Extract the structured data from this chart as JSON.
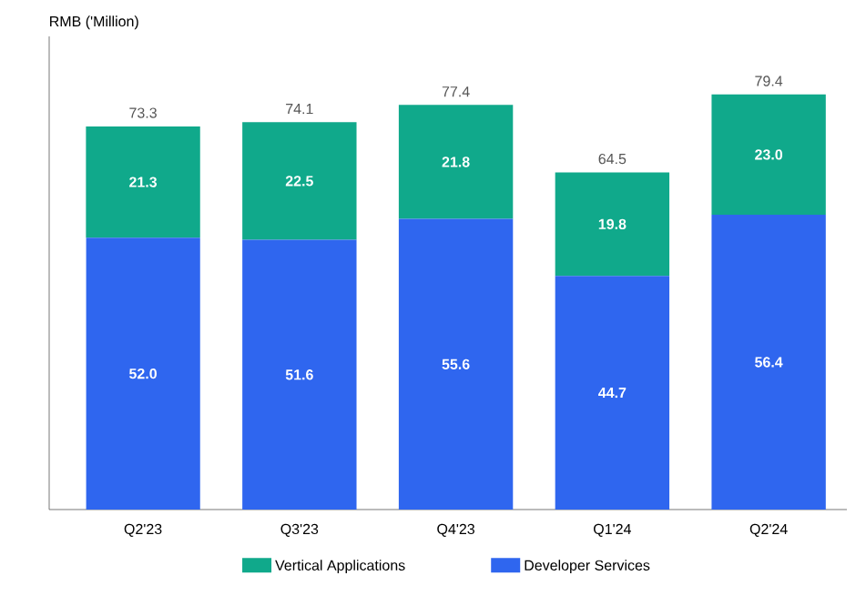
{
  "chart_data": {
    "type": "bar",
    "stacked": true,
    "ylabel": "RMB ('Million)",
    "categories": [
      "Q2'23",
      "Q3'23",
      "Q4'23",
      "Q1'24",
      "Q2'24"
    ],
    "series": [
      {
        "name": "Developer Services",
        "color": "#2f66ef",
        "values": [
          52.0,
          51.6,
          55.6,
          44.7,
          56.4
        ],
        "value_labels": [
          "52.0",
          "51.6",
          "55.6",
          "44.7",
          "56.4"
        ]
      },
      {
        "name": "Vertical Applications",
        "color": "#10a98b",
        "values": [
          21.3,
          22.5,
          21.8,
          19.8,
          23.0
        ],
        "value_labels": [
          "21.3",
          "22.5",
          "21.8",
          "19.8",
          "23.0"
        ]
      }
    ],
    "totals": [
      "73.3",
      "74.1",
      "77.4",
      "64.5",
      "79.4"
    ],
    "legend": "bottom",
    "tick_labels": "x"
  }
}
